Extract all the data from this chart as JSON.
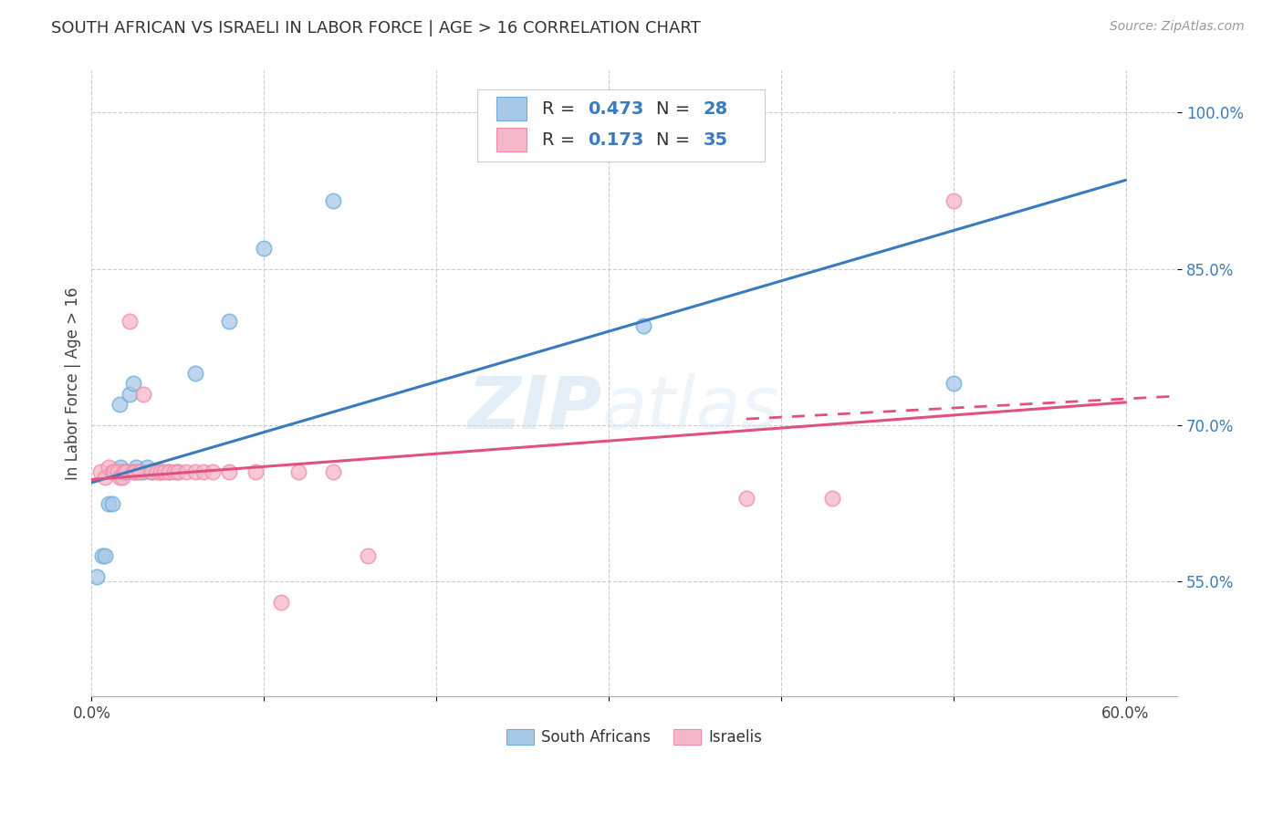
{
  "title": "SOUTH AFRICAN VS ISRAELI IN LABOR FORCE | AGE > 16 CORRELATION CHART",
  "source": "Source: ZipAtlas.com",
  "ylabel_label": "In Labor Force | Age > 16",
  "xlim": [
    0.0,
    0.63
  ],
  "ylim": [
    0.44,
    1.04
  ],
  "xticks": [
    0.0,
    0.1,
    0.2,
    0.3,
    0.4,
    0.5,
    0.6
  ],
  "xticklabels": [
    "0.0%",
    "",
    "",
    "",
    "",
    "",
    "60.0%"
  ],
  "yticks": [
    0.55,
    0.7,
    0.85,
    1.0
  ],
  "yticklabels": [
    "55.0%",
    "70.0%",
    "85.0%",
    "100.0%"
  ],
  "watermark_zip": "ZIP",
  "watermark_atlas": "atlas",
  "legend_r1": "R = ",
  "legend_v1": "0.473",
  "legend_n1_label": "N = ",
  "legend_n1_val": "28",
  "legend_r2": "R = ",
  "legend_v2": "0.173",
  "legend_n2_label": "N = ",
  "legend_n2_val": "35",
  "blue_fill": "#a8c8e8",
  "blue_edge": "#6baed6",
  "pink_fill": "#f4b8c8",
  "pink_edge": "#f48aaa",
  "blue_line": "#3a7abf",
  "pink_line": "#e05080",
  "sa_scatter_x": [
    0.003,
    0.006,
    0.008,
    0.01,
    0.012,
    0.014,
    0.015,
    0.016,
    0.017,
    0.018,
    0.02,
    0.022,
    0.024,
    0.025,
    0.026,
    0.028,
    0.03,
    0.032,
    0.035,
    0.04,
    0.045,
    0.05,
    0.06,
    0.08,
    0.1,
    0.14,
    0.32,
    0.5
  ],
  "sa_scatter_y": [
    0.555,
    0.575,
    0.575,
    0.625,
    0.625,
    0.655,
    0.655,
    0.72,
    0.66,
    0.655,
    0.655,
    0.73,
    0.74,
    0.655,
    0.66,
    0.655,
    0.655,
    0.66,
    0.655,
    0.655,
    0.655,
    0.655,
    0.75,
    0.8,
    0.87,
    0.915,
    0.795,
    0.74
  ],
  "is_scatter_x": [
    0.005,
    0.008,
    0.01,
    0.012,
    0.013,
    0.015,
    0.016,
    0.018,
    0.019,
    0.02,
    0.022,
    0.024,
    0.025,
    0.028,
    0.03,
    0.035,
    0.038,
    0.04,
    0.042,
    0.045,
    0.048,
    0.05,
    0.055,
    0.06,
    0.065,
    0.07,
    0.08,
    0.095,
    0.11,
    0.12,
    0.14,
    0.16,
    0.38,
    0.43,
    0.5
  ],
  "is_scatter_y": [
    0.655,
    0.65,
    0.66,
    0.655,
    0.655,
    0.655,
    0.65,
    0.65,
    0.655,
    0.655,
    0.8,
    0.655,
    0.655,
    0.655,
    0.73,
    0.655,
    0.655,
    0.655,
    0.655,
    0.655,
    0.655,
    0.655,
    0.655,
    0.655,
    0.655,
    0.655,
    0.655,
    0.655,
    0.53,
    0.655,
    0.655,
    0.575,
    0.63,
    0.63,
    0.915
  ],
  "sa_line_x0": 0.0,
  "sa_line_x1": 0.6,
  "sa_line_y0": 0.645,
  "sa_line_y1": 0.935,
  "is_line_solid_x0": 0.0,
  "is_line_solid_x1": 0.6,
  "is_line_y0": 0.648,
  "is_line_y1": 0.722,
  "is_line_dash_x0": 0.38,
  "is_line_dash_x1": 0.63,
  "is_line_dash_y0": 0.706,
  "is_line_dash_y1": 0.728
}
